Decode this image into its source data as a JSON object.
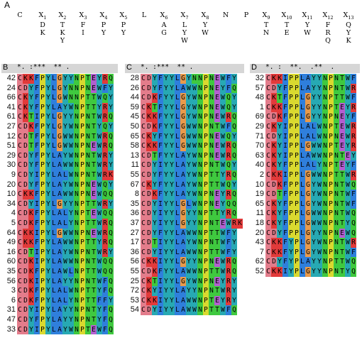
{
  "figure": {
    "panel_label": "A",
    "motif": [
      {
        "pos": "C",
        "sub": "",
        "alts": []
      },
      {
        "pos": "X",
        "sub": "1",
        "alts": [
          "D",
          "K"
        ]
      },
      {
        "pos": "X",
        "sub": "2",
        "alts": [
          "T",
          "K",
          "Y"
        ]
      },
      {
        "pos": "X",
        "sub": "3",
        "alts": [
          "F",
          "I"
        ]
      },
      {
        "pos": "X",
        "sub": "4",
        "alts": [
          "P",
          "Y"
        ]
      },
      {
        "pos": "X",
        "sub": "5",
        "alts": [
          "P",
          "Y"
        ]
      },
      {
        "pos": "L",
        "sub": "",
        "alts": []
      },
      {
        "pos": "X",
        "sub": "6",
        "alts": [
          "A",
          "G"
        ]
      },
      {
        "pos": "X",
        "sub": "7",
        "alts": [
          "L",
          "Y",
          "W"
        ]
      },
      {
        "pos": "X",
        "sub": "8",
        "alts": [
          "Y",
          "W"
        ]
      },
      {
        "pos": "N",
        "sub": "",
        "alts": []
      },
      {
        "pos": "P",
        "sub": "",
        "alts": []
      },
      {
        "pos": "X",
        "sub": "9",
        "alts": [
          "T",
          "N"
        ]
      },
      {
        "pos": "X",
        "sub": "10",
        "alts": [
          "T",
          "E"
        ]
      },
      {
        "pos": "X",
        "sub": "11",
        "alts": [
          "Y",
          "W"
        ]
      },
      {
        "pos": "X",
        "sub": "12",
        "alts": [
          "F",
          "R",
          "Q"
        ]
      },
      {
        "pos": "X",
        "sub": "13",
        "alts": [
          "Q",
          "Y",
          "K"
        ]
      }
    ],
    "blocks": [
      {
        "letter": "B",
        "consensus": "*. :***  ** .",
        "rows": [
          {
            "id": "42",
            "seq": "CKKFPYLGYYNPTEYRQ"
          },
          {
            "id": "24",
            "seq": "CDYFPYLGYNNPNEWFY"
          },
          {
            "id": "66",
            "seq": "CKYFPYLGWNNPTTWQY"
          },
          {
            "id": "41",
            "seq": "CKYFPYLAYWNPTTYRY"
          },
          {
            "id": "61",
            "seq": "CKTIPYLGYYNPNTWRQ"
          },
          {
            "id": "27",
            "seq": "CDKFPYLGYWNPNTYQY"
          },
          {
            "id": "12",
            "seq": "CDTFPYLGWWNPNTWRQ"
          },
          {
            "id": "51",
            "seq": "CDTFPYLGWWNPNEWRQ"
          },
          {
            "id": "29",
            "seq": "CDYFPYLAYWNPNTWRY"
          },
          {
            "id": "30",
            "seq": "CDYFPYLAWWNPNTWRY"
          },
          {
            "id": "9",
            "seq": "CDYIPYLALWNPNTWRK"
          },
          {
            "id": "20",
            "seq": "CDYFPYLAYWNPNEWQY"
          },
          {
            "id": "10",
            "seq": "CKKFPYLAWWNPNEWQQ"
          },
          {
            "id": "34",
            "seq": "CDYIPYLGYYNPTTWRY"
          },
          {
            "id": "4",
            "seq": "CDKFPYLALYNPTEWQQ"
          },
          {
            "id": "5",
            "seq": "CDKFPYLALYNPTTWRQ"
          },
          {
            "id": "64",
            "seq": "CKKIPYLGWWNPNEWRQ"
          },
          {
            "id": "49",
            "seq": "CKKFPYLAWWNPTTYRQ"
          },
          {
            "id": "16",
            "seq": "CDTIPYLAYWNPNTWRY"
          },
          {
            "id": "60",
            "seq": "CDKIPYLAWWNPNTWQQ"
          },
          {
            "id": "35",
            "seq": "CDKFPYLAWLNPTTWQQ"
          },
          {
            "id": "56",
            "seq": "CDKIPYLAYYNPNTWFQ"
          },
          {
            "id": "3",
            "seq": "CDKFPYLALWNPTTYFQ"
          },
          {
            "id": "6",
            "seq": "CDKFPYLALYNPTTFFY"
          },
          {
            "id": "31",
            "seq": "CDYIPYLAYYNPNTYFQ"
          },
          {
            "id": "47",
            "seq": "CDYFPYLAYYNPNTYFQ"
          },
          {
            "id": "33",
            "seq": "CDYIPYLAYWNPTEWFQ"
          }
        ]
      },
      {
        "letter": "C",
        "consensus": "*. :***  ** .",
        "rows": [
          {
            "id": "28",
            "seq": "CDYFYYLGYNNPNEWFY"
          },
          {
            "id": "26",
            "seq": "CDYFYYLAWWNPNEYFQ"
          },
          {
            "id": "44",
            "seq": "CDKFYYLGYWNPNEWQY"
          },
          {
            "id": "59",
            "seq": "CKTFYYLGYWNPNEWQY"
          },
          {
            "id": "45",
            "seq": "CKKFYYLGYWNPNEWRQ"
          },
          {
            "id": "50",
            "seq": "CDKFYYLGWWNPNTWFQ"
          },
          {
            "id": "65",
            "seq": "CKYFYYLGWWNPNEWQY"
          },
          {
            "id": "58",
            "seq": "CKKFYYLGWWNPNEWRQ"
          },
          {
            "id": "13",
            "seq": "CDTFYYLAYWNPNEWRQ"
          },
          {
            "id": "11",
            "seq": "CDYIYYLAYWNPNTWQY"
          },
          {
            "id": "55",
            "seq": "CDYFYYLAYWNPTTYRQ"
          },
          {
            "id": "67",
            "seq": "CKYFYYLAYWNPTTWQY"
          },
          {
            "id": "8",
            "seq": "CDKFYYLAYWNPNEYRQ"
          },
          {
            "id": "35",
            "seq": "CDYIYYLGLWNPNEYQQ"
          },
          {
            "id": "36",
            "seq": "CDYIYYLGYYNPTTYRQ"
          },
          {
            "id": "37",
            "seq": "CDYIYYLGYYNPNTEWRK"
          },
          {
            "id": "27",
            "seq": "CDYFYYLAWWNPTTWFY"
          },
          {
            "id": "17",
            "seq": "CDTIYYLAYWNPNTWFY"
          },
          {
            "id": "36",
            "seq": "CDYIYYLAWWNPTTWFY"
          },
          {
            "id": "56",
            "seq": "CKKIYYLGYYNPNEWRQ"
          },
          {
            "id": "55",
            "seq": "CDKFYYLAWWNPTTWRQ"
          },
          {
            "id": "25",
            "seq": "CKTIYYLGYWNPNEYRY"
          },
          {
            "id": "72",
            "seq": "CKYIYYLAYYNPNTWRY"
          },
          {
            "id": "53",
            "seq": "CKKIYYLAWWNPTEYRY"
          },
          {
            "id": "54",
            "seq": "CDYIYYLAWWNPTTWFQ"
          }
        ]
      },
      {
        "letter": "D",
        "consensus": "*. :  **.  .**  .",
        "rows": [
          {
            "id": "32",
            "seq": "CKKIPPLAYYNPNTWFY"
          },
          {
            "id": "57",
            "seq": "CDYFPPLAYYNPNTWRQ"
          },
          {
            "id": "48",
            "seq": "CKTFPPLGYYNPTTWFY"
          },
          {
            "id": "1",
            "seq": "CKKFPPLGYYNPTEYRY"
          },
          {
            "id": "69",
            "seq": "CDKFPPLGYYNPNEYFY"
          },
          {
            "id": "29",
            "seq": "CKYIPPLALWNPTEWRY"
          },
          {
            "id": "71",
            "seq": "CDYIPPLALWNPNEWRY"
          },
          {
            "id": "70",
            "seq": "CKYIPPLGWWNPTEYRY"
          },
          {
            "id": "63",
            "seq": "CKYIPPLAWWNPNTEYQY"
          },
          {
            "id": "40",
            "seq": "CKYFPPLALYNPTEYFQ"
          },
          {
            "id": "2",
            "seq": "CKKIPPLGWWNPTTWRY"
          },
          {
            "id": "10",
            "seq": "CDKFPPLGYWNPNTWQQ"
          },
          {
            "id": "19",
            "seq": "CDTFPPLGYWNPNTWFY"
          },
          {
            "id": "65",
            "seq": "CKYFPPLGYWNPNTWFQ"
          },
          {
            "id": "11",
            "seq": "CKYFPPLGWWNPNTWQY"
          },
          {
            "id": "18",
            "seq": "CKYFPPLGWWNPNTYQY"
          },
          {
            "id": "20",
            "seq": "CDYFPPLGYYNPNEWQY"
          },
          {
            "id": "43",
            "seq": "CKKFYPLGYWNPNTWRK"
          },
          {
            "id": "7",
            "seq": "CKKFYPLGYWNPNTWFQ"
          },
          {
            "id": "62",
            "seq": "CDYFYPLAYYNPTTWQQ"
          },
          {
            "id": "52",
            "seq": "CKKIYPLGYYNPNTYQK"
          }
        ]
      }
    ]
  }
}
